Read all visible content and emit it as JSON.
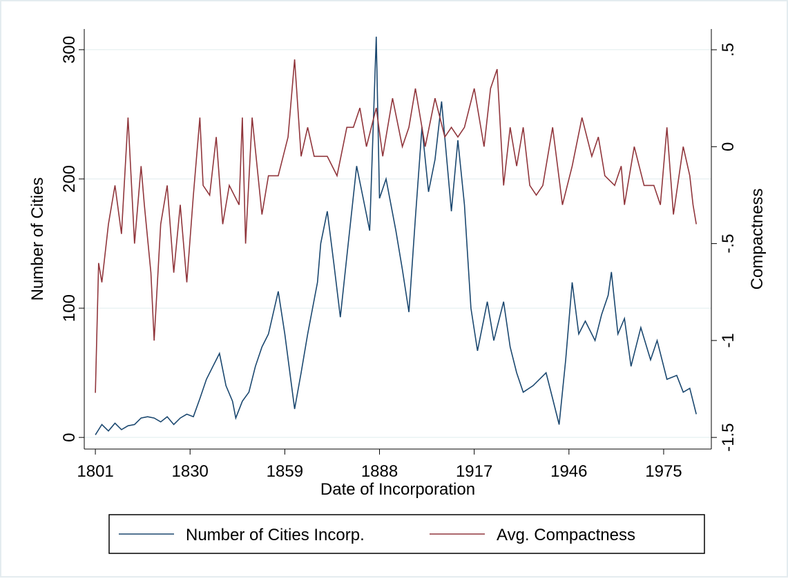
{
  "chart_data": {
    "type": "line",
    "xlabel": "Date of Incorporation",
    "ylabel": "Number of Cities",
    "y2label": "Compactness",
    "xlim": [
      1797.6,
      1989.6
    ],
    "xticks": [
      1801,
      1830,
      1859,
      1888,
      1917,
      1946,
      1975
    ],
    "ylim": [
      -9,
      316
    ],
    "yticks": [
      0,
      100,
      200,
      300
    ],
    "y2lim": [
      -1.56,
      0.607
    ],
    "y2ticks": [
      {
        "value": -1.5,
        "label": "-1.5"
      },
      -1,
      {
        "value": -0.5,
        "label": "-.5"
      },
      0,
      {
        "value": 0.5,
        "label": ".5"
      }
    ],
    "grid": true,
    "legend": "bottom",
    "series": [
      {
        "name": "Number of Cities Incorp.",
        "color": "#1a476f",
        "x": [
          1801,
          1803,
          1805,
          1807,
          1809,
          1811,
          1813,
          1815,
          1817,
          1819,
          1821,
          1823,
          1825,
          1827,
          1829,
          1831,
          1833,
          1835,
          1837,
          1839,
          1841,
          1843,
          1844,
          1846,
          1848,
          1850,
          1852,
          1854,
          1857,
          1859,
          1862,
          1864,
          1866,
          1869,
          1870,
          1872,
          1874,
          1876,
          1878,
          1881,
          1883,
          1885,
          1887,
          1888,
          1890,
          1893,
          1895,
          1897,
          1899,
          1901,
          1903,
          1905,
          1907,
          1910,
          1912,
          1914,
          1916,
          1918,
          1921,
          1923,
          1926,
          1928,
          1930,
          1932,
          1935,
          1939,
          1941,
          1943,
          1945,
          1947,
          1949,
          1951,
          1954,
          1956,
          1958,
          1959,
          1961,
          1963,
          1965,
          1968,
          1971,
          1973,
          1976,
          1979,
          1981,
          1983,
          1985
        ],
        "values": [
          2,
          10,
          5,
          11,
          6,
          9,
          10,
          15,
          16,
          15,
          12,
          16,
          10,
          15,
          18,
          16,
          30,
          45,
          55,
          65,
          40,
          28,
          15,
          28,
          35,
          55,
          70,
          80,
          113,
          80,
          22,
          50,
          80,
          120,
          150,
          175,
          135,
          93,
          140,
          210,
          185,
          160,
          310,
          185,
          200,
          160,
          130,
          97,
          170,
          240,
          190,
          215,
          260,
          175,
          230,
          180,
          100,
          67,
          105,
          75,
          105,
          70,
          50,
          35,
          40,
          50,
          30,
          10,
          60,
          120,
          80,
          90,
          75,
          95,
          110,
          128,
          80,
          92,
          55,
          85,
          60,
          75,
          45,
          48,
          35,
          38,
          18
        ],
        "axis": "y"
      },
      {
        "name": "Avg. Compactness",
        "color": "#90353b",
        "x": [
          1801,
          1802,
          1803,
          1805,
          1807,
          1809,
          1811,
          1813,
          1815,
          1816,
          1818,
          1819,
          1821,
          1823,
          1825,
          1827,
          1829,
          1831,
          1833,
          1834,
          1836,
          1838,
          1840,
          1842,
          1845,
          1846,
          1847,
          1849,
          1852,
          1854,
          1857,
          1860,
          1862,
          1864,
          1866,
          1868,
          1870,
          1872,
          1875,
          1878,
          1880,
          1882,
          1884,
          1887,
          1889,
          1892,
          1895,
          1897,
          1899,
          1902,
          1905,
          1908,
          1910,
          1912,
          1914,
          1917,
          1920,
          1922,
          1924,
          1926,
          1928,
          1930,
          1932,
          1934,
          1936,
          1938,
          1941,
          1944,
          1947,
          1950,
          1953,
          1955,
          1957,
          1960,
          1962,
          1963,
          1966,
          1969,
          1972,
          1974,
          1976,
          1978,
          1981,
          1983,
          1984,
          1985
        ],
        "values": [
          -1.27,
          -0.6,
          -0.7,
          -0.4,
          -0.2,
          -0.45,
          0.15,
          -0.5,
          -0.1,
          -0.3,
          -0.65,
          -1.0,
          -0.4,
          -0.2,
          -0.65,
          -0.3,
          -0.7,
          -0.25,
          0.15,
          -0.2,
          -0.25,
          0.05,
          -0.4,
          -0.2,
          -0.3,
          0.15,
          -0.5,
          0.15,
          -0.35,
          -0.15,
          -0.15,
          0.05,
          0.45,
          -0.05,
          0.1,
          -0.05,
          -0.05,
          -0.05,
          -0.15,
          0.1,
          0.1,
          0.2,
          0.0,
          0.2,
          -0.05,
          0.25,
          0.0,
          0.1,
          0.3,
          0.0,
          0.25,
          0.05,
          0.1,
          0.05,
          0.1,
          0.3,
          0.0,
          0.3,
          0.4,
          -0.2,
          0.1,
          -0.1,
          0.1,
          -0.2,
          -0.25,
          -0.2,
          0.1,
          -0.3,
          -0.1,
          0.15,
          -0.05,
          0.05,
          -0.15,
          -0.2,
          -0.1,
          -0.3,
          0.0,
          -0.2,
          -0.2,
          -0.3,
          0.1,
          -0.35,
          0.0,
          -0.15,
          -0.3,
          -0.4
        ],
        "axis": "y2"
      }
    ]
  }
}
